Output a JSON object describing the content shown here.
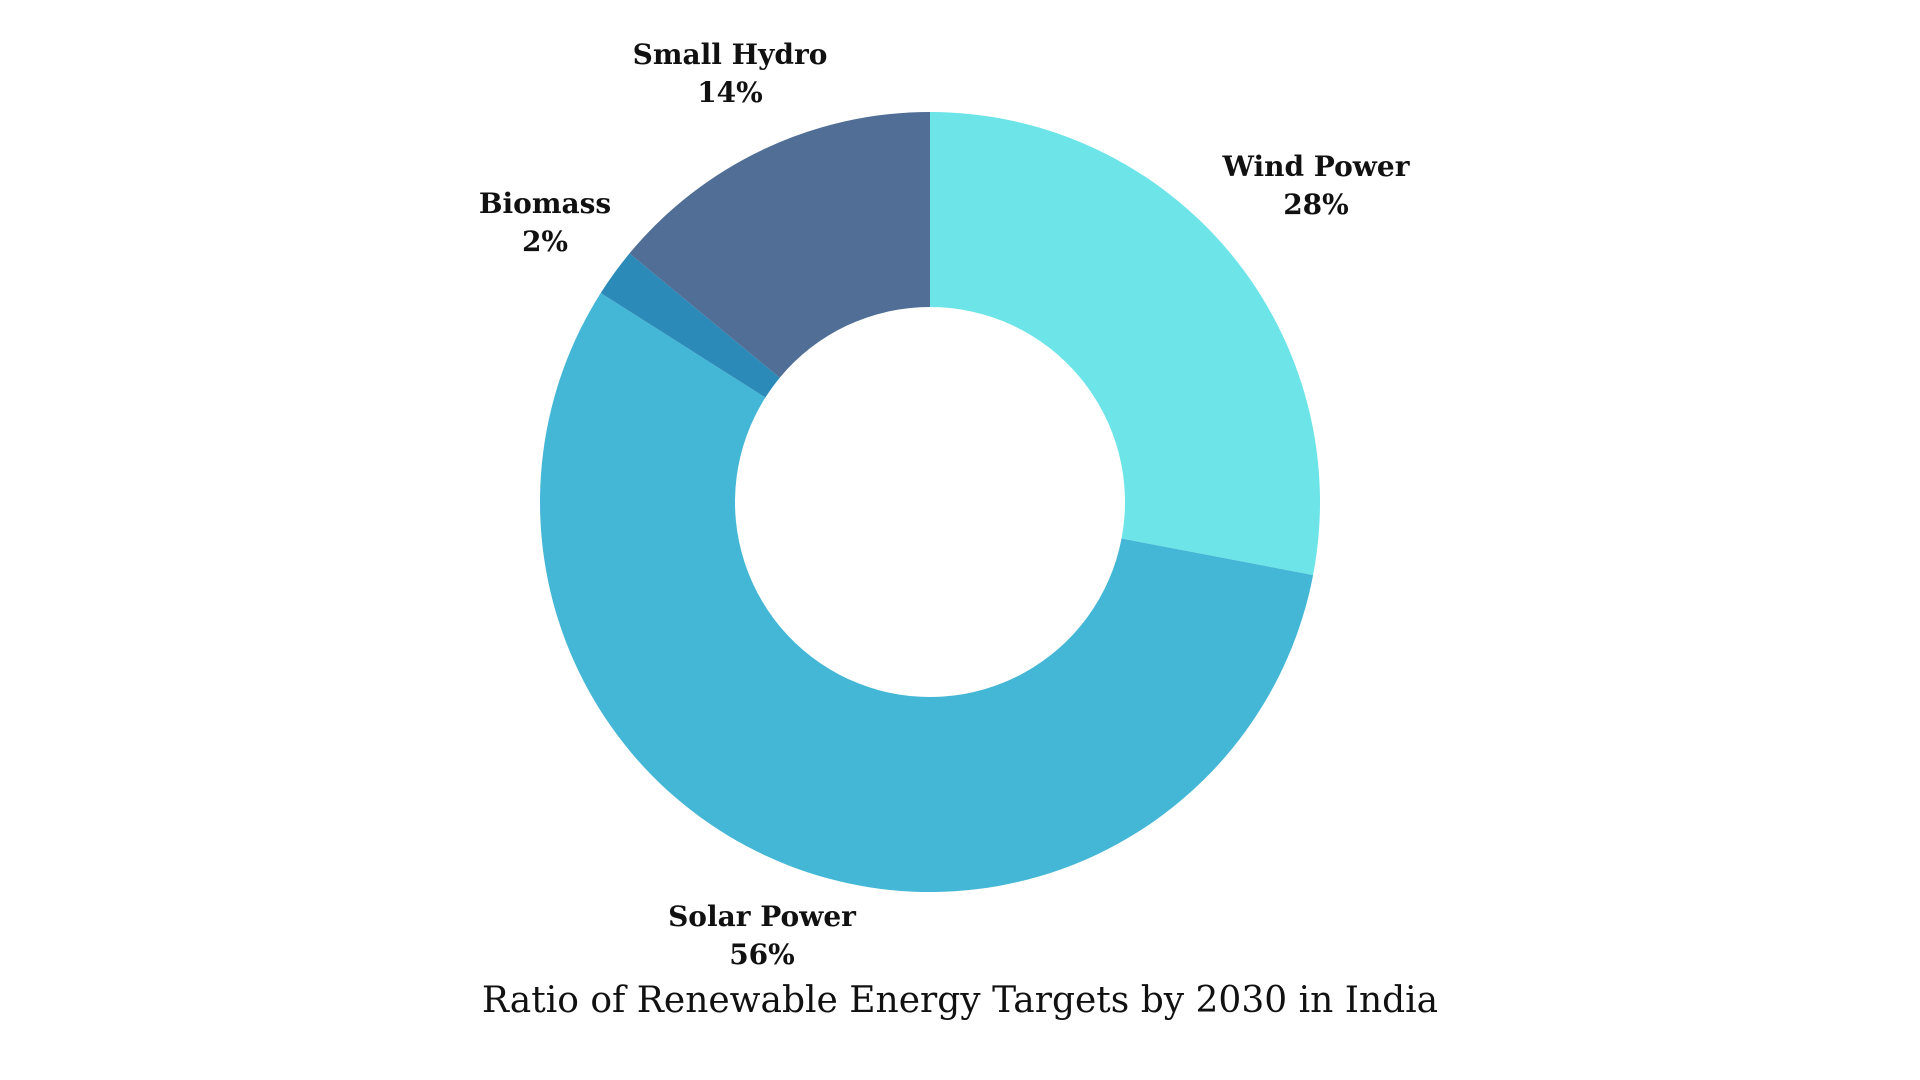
{
  "chart_data": {
    "type": "pie",
    "style": "donut",
    "title": "Ratio of Renewable Energy Targets by 2030 in India",
    "slices": [
      {
        "label": "Wind Power",
        "value": 28,
        "display": "28%",
        "color": "#6CE4E8"
      },
      {
        "label": "Solar Power",
        "value": 56,
        "display": "56%",
        "color": "#44B7D6"
      },
      {
        "label": "Biomass",
        "value": 2,
        "display": "2%",
        "color": "#2B8AB8"
      },
      {
        "label": "Small Hydro",
        "value": 14,
        "display": "14%",
        "color": "#506E96"
      }
    ],
    "legend": "none"
  }
}
